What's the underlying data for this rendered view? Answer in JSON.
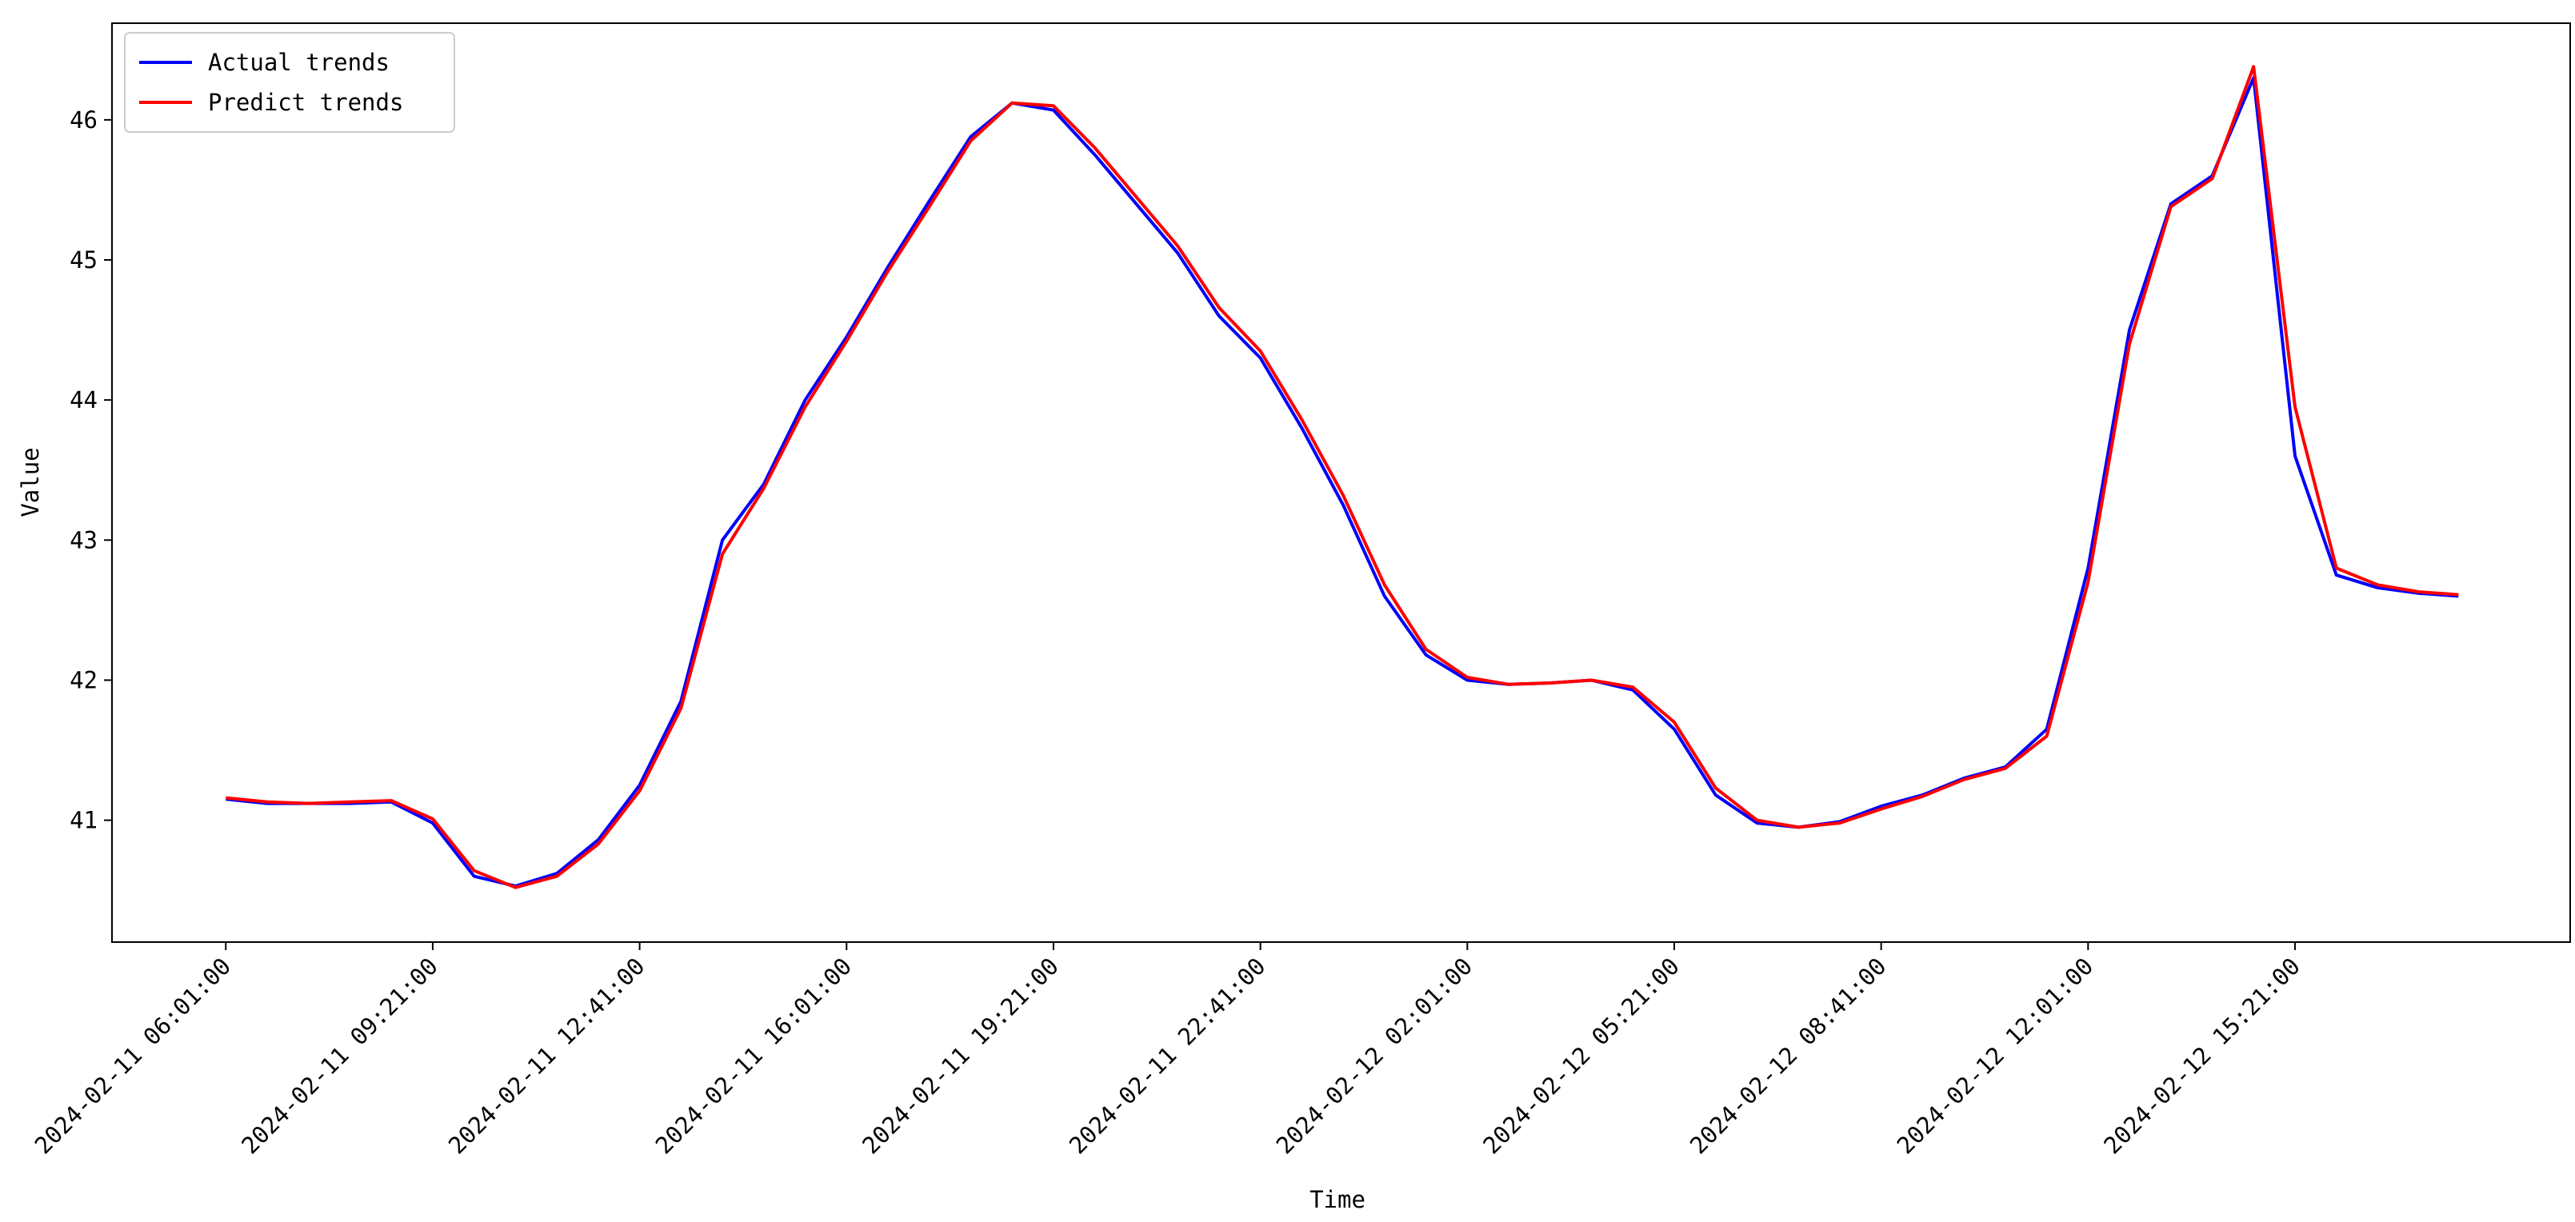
{
  "chart_data": {
    "type": "line",
    "x_label": "Time",
    "y_label": "Value",
    "legend": "upper left",
    "grid": false,
    "x": [
      "2024-02-11 06:01:00",
      "2024-02-11 06:41:00",
      "2024-02-11 07:21:00",
      "2024-02-11 08:01:00",
      "2024-02-11 08:41:00",
      "2024-02-11 09:21:00",
      "2024-02-11 10:01:00",
      "2024-02-11 10:41:00",
      "2024-02-11 11:21:00",
      "2024-02-11 12:01:00",
      "2024-02-11 12:41:00",
      "2024-02-11 13:21:00",
      "2024-02-11 14:01:00",
      "2024-02-11 14:41:00",
      "2024-02-11 15:21:00",
      "2024-02-11 16:01:00",
      "2024-02-11 16:41:00",
      "2024-02-11 17:21:00",
      "2024-02-11 18:01:00",
      "2024-02-11 18:41:00",
      "2024-02-11 19:21:00",
      "2024-02-11 20:01:00",
      "2024-02-11 20:41:00",
      "2024-02-11 21:21:00",
      "2024-02-11 22:01:00",
      "2024-02-11 22:41:00",
      "2024-02-11 23:21:00",
      "2024-02-12 00:01:00",
      "2024-02-12 00:41:00",
      "2024-02-12 01:21:00",
      "2024-02-12 02:01:00",
      "2024-02-12 02:41:00",
      "2024-02-12 03:21:00",
      "2024-02-12 04:01:00",
      "2024-02-12 04:41:00",
      "2024-02-12 05:21:00",
      "2024-02-12 06:01:00",
      "2024-02-12 06:41:00",
      "2024-02-12 07:21:00",
      "2024-02-12 08:01:00",
      "2024-02-12 08:41:00",
      "2024-02-12 09:21:00",
      "2024-02-12 10:01:00",
      "2024-02-12 10:41:00",
      "2024-02-12 11:21:00",
      "2024-02-12 12:01:00",
      "2024-02-12 12:41:00",
      "2024-02-12 13:21:00",
      "2024-02-12 14:01:00",
      "2024-02-12 14:41:00",
      "2024-02-12 15:21:00",
      "2024-02-12 16:01:00",
      "2024-02-12 16:41:00",
      "2024-02-12 17:21:00",
      "2024-02-12 17:59:00"
    ],
    "series": [
      {
        "name": "Actual trends",
        "color": "#0000ff",
        "values": [
          41.15,
          41.12,
          41.12,
          41.12,
          41.13,
          40.98,
          40.6,
          40.53,
          40.62,
          40.86,
          41.25,
          41.85,
          43.0,
          43.4,
          44.0,
          44.45,
          44.95,
          45.42,
          45.88,
          46.12,
          46.07,
          45.75,
          45.4,
          45.05,
          44.6,
          44.3,
          43.8,
          43.25,
          42.6,
          42.18,
          42.0,
          41.97,
          41.98,
          42.0,
          41.93,
          41.65,
          41.18,
          40.98,
          40.95,
          40.99,
          41.1,
          41.18,
          41.3,
          41.38,
          41.65,
          42.8,
          44.5,
          45.4,
          45.6,
          46.3,
          43.6,
          42.75,
          42.66,
          42.62,
          42.6
        ]
      },
      {
        "name": "Predict trends",
        "color": "#ff0000",
        "values": [
          41.16,
          41.13,
          41.12,
          41.13,
          41.14,
          41.01,
          40.64,
          40.52,
          40.6,
          40.83,
          41.21,
          41.8,
          42.9,
          43.37,
          43.95,
          44.42,
          44.92,
          45.38,
          45.85,
          46.12,
          46.1,
          45.8,
          45.45,
          45.1,
          44.66,
          44.35,
          43.86,
          43.32,
          42.68,
          42.22,
          42.02,
          41.97,
          41.98,
          42.0,
          41.95,
          41.7,
          41.23,
          41.0,
          40.95,
          40.98,
          41.08,
          41.17,
          41.29,
          41.37,
          41.6,
          42.7,
          44.4,
          45.38,
          45.58,
          46.38,
          43.95,
          42.8,
          42.68,
          42.63,
          42.61
        ]
      }
    ],
    "xlim": [
      "2024-02-11 04:11:00",
      "2024-02-12 19:47:00"
    ],
    "xticks": [
      "2024-02-11 06:01:00",
      "2024-02-11 09:21:00",
      "2024-02-11 12:41:00",
      "2024-02-11 16:01:00",
      "2024-02-11 19:21:00",
      "2024-02-11 22:41:00",
      "2024-02-12 02:01:00",
      "2024-02-12 05:21:00",
      "2024-02-12 08:41:00",
      "2024-02-12 12:01:00",
      "2024-02-12 15:21:00"
    ],
    "ylim": [
      40.13,
      46.69
    ],
    "yticks": [
      41,
      42,
      43,
      44,
      45,
      46
    ]
  }
}
